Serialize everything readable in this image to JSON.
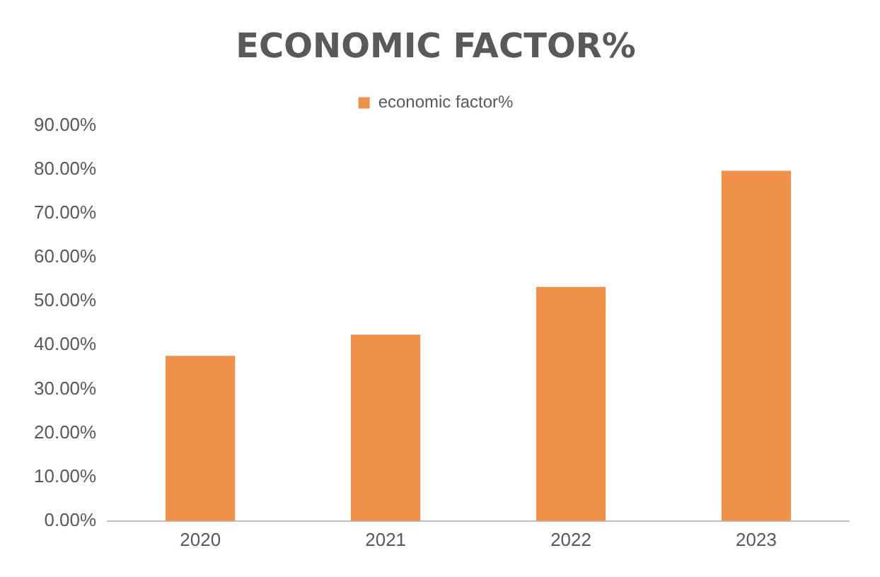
{
  "chart_data": {
    "type": "bar",
    "title": "ECONOMIC FACTOR%",
    "categories": [
      "2020",
      "2021",
      "2022",
      "2023"
    ],
    "series": [
      {
        "name": "economic factor%",
        "color": "#f0914a",
        "values": [
          37.6,
          42.4,
          53.3,
          79.7
        ]
      }
    ],
    "ylim": [
      0,
      90
    ],
    "yticks": [
      {
        "value": 0,
        "label": "0.00%"
      },
      {
        "value": 10,
        "label": "10.00%"
      },
      {
        "value": 20,
        "label": "20.00%"
      },
      {
        "value": 30,
        "label": "30.00%"
      },
      {
        "value": 40,
        "label": "40.00%"
      },
      {
        "value": 50,
        "label": "50.00%"
      },
      {
        "value": 60,
        "label": "60.00%"
      },
      {
        "value": 70,
        "label": "70.00%"
      },
      {
        "value": 80,
        "label": "80.00%"
      },
      {
        "value": 90,
        "label": "90.00%"
      }
    ],
    "grid": false,
    "legend": "top"
  }
}
